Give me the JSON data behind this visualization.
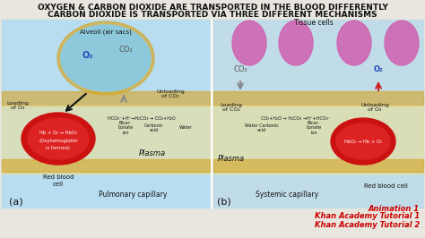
{
  "title_line1": "OXYGEN & CARBON DIOXIDE ARE TRANSPORTED IN THE BLOOD DIFFERENTLY",
  "title_line2": "CARBON DIOXIDE IS TRANSPORTED VIA THREE DIFFERENT MECHANISMS",
  "title_fontsize": 6.5,
  "title_color": "#111111",
  "annotation_bottom_right": [
    "Animation 1",
    "Khan Academy Tutorial 1",
    "Khan Academy Tutorial 2"
  ],
  "annotation_color": "#cc0000",
  "annotation_fontsize": 6,
  "left_panel_bg": "#b8ddf0",
  "right_panel_bg": "#c0dce8",
  "alveoli_color": "#88cce8",
  "alveoli_border_color": "#d4a830",
  "tissue_cell_color": "#d060b0",
  "red_blood_cell_color": "#cc1111",
  "red_blood_cell_inner_color": "#dd2222",
  "cap_wall_color": "#d4a830",
  "plasma_color": "#f0e090",
  "o2_color": "#2244bb",
  "co2_color": "#555555",
  "arrow_color_dark": "#111111",
  "arrow_color_gray": "#888888",
  "arrow_color_red": "#cc2222",
  "panel_bg": "#e8e6de"
}
